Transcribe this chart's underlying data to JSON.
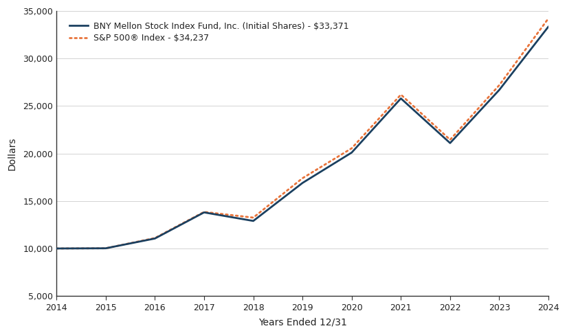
{
  "years": [
    2014,
    2015,
    2016,
    2017,
    2018,
    2019,
    2020,
    2021,
    2022,
    2023,
    2024
  ],
  "fund_values": [
    10000,
    10020,
    11050,
    13800,
    12900,
    16900,
    20100,
    25800,
    21100,
    26700,
    33371
  ],
  "sp500_values": [
    10000,
    10020,
    11100,
    13850,
    13250,
    17400,
    20550,
    26200,
    21450,
    27200,
    34237
  ],
  "fund_color": "#1b4060",
  "sp500_color": "#e8733a",
  "fund_label": "BNY Mellon Stock Index Fund, Inc. (Initial Shares) - $33,371",
  "sp500_label": "S&P 500® Index - $34,237",
  "xlabel": "Years Ended 12/31",
  "ylabel": "Dollars",
  "ylim_min": 5000,
  "ylim_max": 35000,
  "yticks": [
    5000,
    10000,
    15000,
    20000,
    25000,
    30000,
    35000
  ],
  "bg_color": "#ffffff",
  "spine_color": "#333333",
  "grid_color": "#cccccc",
  "fund_linewidth": 2.0,
  "sp500_linewidth": 2.0,
  "axis_label_fontsize": 10,
  "tick_fontsize": 9,
  "legend_fontsize": 9
}
